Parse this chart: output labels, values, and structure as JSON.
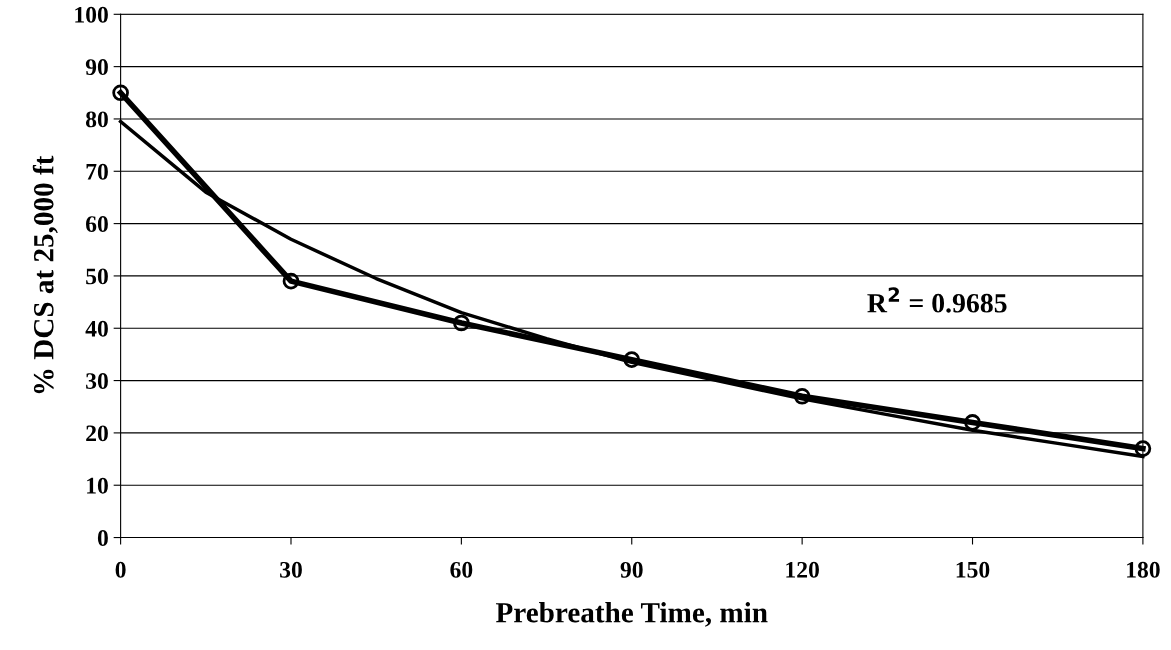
{
  "chart_data": {
    "type": "line",
    "xlabel": "Prebreathe Time, min",
    "ylabel": "% DCS at 25,000 ft",
    "xlim": [
      0,
      180
    ],
    "xticks": [
      0,
      30,
      60,
      90,
      120,
      150,
      180
    ],
    "ylim": [
      0,
      100
    ],
    "yticks": [
      0,
      10,
      20,
      30,
      40,
      50,
      60,
      70,
      80,
      90,
      100
    ],
    "grid": "y",
    "annotations": [
      "R$^{2}$ = 0.9685"
    ],
    "series": [
      {
        "color": "#000000",
        "marker": "circle",
        "x": [
          0,
          30,
          60,
          90,
          120,
          150,
          180
        ],
        "values": [
          85,
          49,
          41,
          34,
          27,
          22,
          17
        ]
      },
      {
        "color": "#000000",
        "marker": "none",
        "x": [
          0,
          15,
          30,
          45,
          60,
          75,
          90,
          105,
          120,
          135,
          150,
          165,
          180
        ],
        "values": [
          79.5,
          66,
          57,
          49.5,
          43,
          38,
          33.5,
          30,
          26.5,
          23.5,
          20.5,
          18,
          15.5
        ]
      }
    ]
  }
}
